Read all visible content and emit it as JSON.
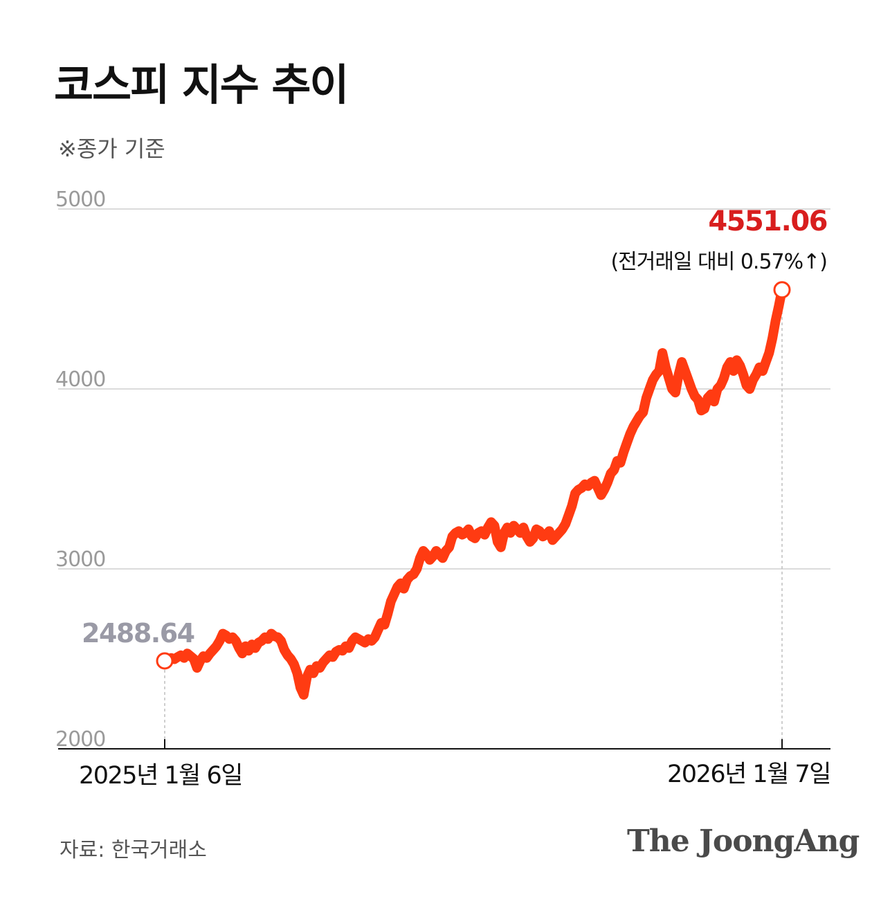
{
  "title": "코스피 지수 추이",
  "subtitle": "※종가 기준",
  "source": "자료: 한국거래소",
  "brand": "The JoongAng",
  "colors": {
    "line": "#ff3b12",
    "end_value": "#d81e1e",
    "start_value": "#9a9aa6",
    "grid": "#cfcfcf"
  },
  "chart_data": {
    "type": "line",
    "y_ticks": [
      "5000",
      "4000",
      "3000",
      "2000"
    ],
    "ylim": [
      2000,
      5000
    ],
    "x_tick_labels": [
      "2025년 1월 6일",
      "2026년 1월 7일"
    ],
    "start": {
      "label": "2488.64",
      "value": 2488.64
    },
    "end": {
      "label": "4551.06",
      "value": 4551.06,
      "change_label": "(전거래일 대비 0.57%↑)"
    },
    "series": [
      {
        "values": [
          2488.64,
          2480,
          2505,
          2498,
          2510,
          2520,
          2505,
          2530,
          2515,
          2500,
          2450,
          2490,
          2515,
          2505,
          2530,
          2550,
          2570,
          2600,
          2640,
          2630,
          2610,
          2620,
          2600,
          2560,
          2530,
          2570,
          2545,
          2580,
          2560,
          2590,
          2600,
          2620,
          2610,
          2640,
          2625,
          2620,
          2600,
          2550,
          2520,
          2500,
          2470,
          2420,
          2340,
          2300,
          2400,
          2440,
          2420,
          2460,
          2450,
          2480,
          2500,
          2520,
          2510,
          2540,
          2550,
          2545,
          2570,
          2560,
          2600,
          2620,
          2610,
          2600,
          2590,
          2610,
          2600,
          2620,
          2660,
          2700,
          2690,
          2750,
          2820,
          2860,
          2900,
          2920,
          2890,
          2940,
          2960,
          2970,
          3000,
          3060,
          3100,
          3080,
          3050,
          3070,
          3100,
          3080,
          3060,
          3100,
          3120,
          3180,
          3200,
          3210,
          3190,
          3200,
          3220,
          3180,
          3170,
          3200,
          3210,
          3190,
          3230,
          3260,
          3240,
          3150,
          3120,
          3200,
          3230,
          3200,
          3240,
          3220,
          3200,
          3230,
          3180,
          3150,
          3170,
          3220,
          3210,
          3180,
          3190,
          3210,
          3160,
          3180,
          3200,
          3220,
          3250,
          3300,
          3350,
          3420,
          3440,
          3450,
          3470,
          3460,
          3480,
          3490,
          3450,
          3410,
          3440,
          3480,
          3530,
          3550,
          3600,
          3590,
          3650,
          3700,
          3750,
          3790,
          3820,
          3850,
          3870,
          3950,
          4000,
          4050,
          4080,
          4100,
          4200,
          4120,
          4060,
          4000,
          3980,
          4080,
          4150,
          4100,
          4050,
          4000,
          3960,
          3940,
          3880,
          3890,
          3950,
          3970,
          3930,
          4000,
          4020,
          4060,
          4120,
          4150,
          4100,
          4160,
          4130,
          4080,
          4020,
          4000,
          4050,
          4080,
          4120,
          4100,
          4150,
          4200,
          4280,
          4380,
          4460,
          4551.06
        ]
      }
    ]
  }
}
